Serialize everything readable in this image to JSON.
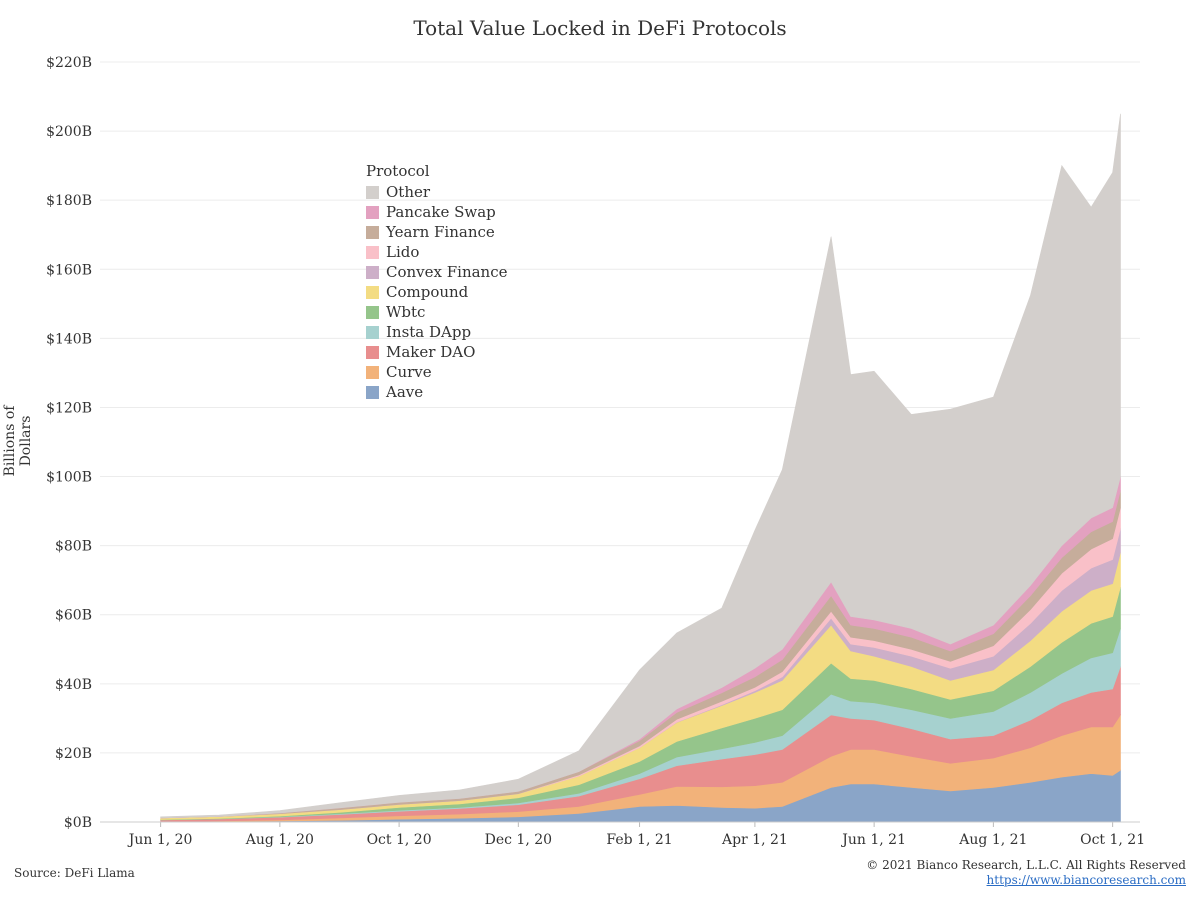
{
  "chart_data": {
    "type": "area",
    "stacked": true,
    "title": "Total Value Locked in DeFi Protocols",
    "ylabel": "Billions of Dollars",
    "xlabel": "",
    "ylim": [
      0,
      220
    ],
    "y_ticks": [
      0,
      20,
      40,
      60,
      80,
      100,
      120,
      140,
      160,
      180,
      200,
      220
    ],
    "y_tick_labels": [
      "$0B",
      "$20B",
      "$40B",
      "$60B",
      "$80B",
      "$100B",
      "$120B",
      "$140B",
      "$160B",
      "$180B",
      "$200B",
      "$220B"
    ],
    "x_ticks": [
      "2020-06-01",
      "2020-08-01",
      "2020-10-01",
      "2020-12-01",
      "2021-02-01",
      "2021-04-01",
      "2021-06-01",
      "2021-08-01",
      "2021-10-01"
    ],
    "x_tick_labels": [
      "Jun 1, 20",
      "Aug 1, 20",
      "Oct 1, 20",
      "Dec 1, 20",
      "Feb 1, 21",
      "Apr 1, 21",
      "Jun 1, 21",
      "Aug 1, 21",
      "Oct 1, 21"
    ],
    "x": [
      "2020-06-01",
      "2020-07-01",
      "2020-08-01",
      "2020-09-01",
      "2020-10-01",
      "2020-11-01",
      "2020-12-01",
      "2021-01-01",
      "2021-02-01",
      "2021-02-20",
      "2021-03-15",
      "2021-04-01",
      "2021-04-15",
      "2021-05-10",
      "2021-05-20",
      "2021-06-01",
      "2021-06-20",
      "2021-07-10",
      "2021-08-01",
      "2021-08-20",
      "2021-09-05",
      "2021-09-20",
      "2021-10-01",
      "2021-10-05"
    ],
    "legend_title": "Protocol",
    "legend_position": "upper-left",
    "grid": true,
    "series": [
      {
        "name": "Aave",
        "color": "#8aa5c8",
        "values": [
          0.1,
          0.2,
          0.3,
          0.5,
          0.8,
          1.1,
          1.5,
          2.5,
          4.5,
          4.8,
          4.2,
          4.0,
          4.5,
          10.0,
          11.0,
          11.0,
          10.0,
          9.0,
          10.0,
          11.5,
          13.0,
          14.0,
          13.5,
          15.0
        ]
      },
      {
        "name": "Curve",
        "color": "#f2b27a",
        "values": [
          0.0,
          0.1,
          0.3,
          0.7,
          1.0,
          1.2,
          1.5,
          2.0,
          3.5,
          5.5,
          6.0,
          6.5,
          7.0,
          9.0,
          10.0,
          10.0,
          9.0,
          8.0,
          8.5,
          10.0,
          12.0,
          13.5,
          14.0,
          16.0
        ]
      },
      {
        "name": "Maker DAO",
        "color": "#e88e8e",
        "values": [
          0.5,
          0.6,
          0.8,
          1.0,
          1.3,
          1.6,
          2.0,
          3.0,
          4.5,
          6.0,
          8.0,
          9.0,
          9.5,
          12.0,
          9.0,
          8.5,
          8.0,
          7.0,
          6.5,
          8.0,
          9.5,
          10.0,
          11.0,
          14.0
        ]
      },
      {
        "name": "Insta DApp",
        "color": "#a6d1cf",
        "values": [
          0.0,
          0.0,
          0.1,
          0.2,
          0.3,
          0.3,
          0.5,
          0.8,
          1.5,
          2.5,
          3.0,
          3.5,
          4.0,
          6.0,
          5.0,
          5.0,
          5.5,
          6.0,
          7.0,
          8.0,
          8.5,
          10.0,
          10.5,
          11.0
        ]
      },
      {
        "name": "Wbtc",
        "color": "#95c58b",
        "values": [
          0.1,
          0.1,
          0.2,
          0.4,
          0.8,
          1.0,
          1.5,
          2.5,
          3.5,
          4.5,
          6.0,
          7.0,
          7.5,
          9.0,
          6.5,
          6.5,
          6.0,
          5.5,
          6.0,
          7.5,
          9.0,
          10.0,
          10.5,
          12.0
        ]
      },
      {
        "name": "Compound",
        "color": "#f3dc83",
        "values": [
          0.5,
          0.6,
          0.7,
          0.8,
          0.9,
          1.0,
          1.2,
          2.5,
          4.0,
          5.5,
          6.5,
          7.5,
          8.5,
          11.0,
          8.0,
          7.0,
          6.5,
          5.5,
          6.0,
          7.5,
          9.0,
          9.5,
          9.5,
          10.0
        ]
      },
      {
        "name": "Convex Finance",
        "color": "#cdafc8",
        "values": [
          0.0,
          0.0,
          0.0,
          0.0,
          0.0,
          0.0,
          0.0,
          0.0,
          0.0,
          0.1,
          0.2,
          0.5,
          1.0,
          2.0,
          2.0,
          2.5,
          3.0,
          3.5,
          4.0,
          5.0,
          6.0,
          6.5,
          7.0,
          7.0
        ]
      },
      {
        "name": "Lido",
        "color": "#f9c0c8",
        "values": [
          0.0,
          0.0,
          0.0,
          0.0,
          0.0,
          0.0,
          0.0,
          0.3,
          0.5,
          0.8,
          1.0,
          1.0,
          1.5,
          2.0,
          2.0,
          2.0,
          2.0,
          2.0,
          3.0,
          4.0,
          5.0,
          5.5,
          6.0,
          6.0
        ]
      },
      {
        "name": "Yearn Finance",
        "color": "#c6ad9b",
        "values": [
          0.0,
          0.0,
          0.2,
          0.5,
          0.6,
          0.6,
          0.7,
          1.0,
          1.5,
          2.0,
          2.5,
          3.0,
          3.5,
          4.5,
          3.5,
          3.5,
          3.5,
          3.0,
          3.5,
          4.0,
          4.5,
          5.0,
          5.0,
          5.0
        ]
      },
      {
        "name": "Pancake Swap",
        "color": "#e3a1c0",
        "values": [
          0.0,
          0.0,
          0.0,
          0.0,
          0.0,
          0.0,
          0.0,
          0.0,
          0.5,
          1.0,
          1.5,
          2.5,
          3.0,
          4.0,
          2.5,
          2.5,
          2.5,
          2.0,
          2.5,
          3.0,
          3.5,
          4.0,
          4.0,
          4.0
        ]
      },
      {
        "name": "Other",
        "color": "#d3cfcc",
        "values": [
          0.3,
          0.4,
          0.7,
          1.5,
          2.0,
          2.5,
          3.5,
          6.0,
          20.0,
          22.0,
          23.0,
          40.0,
          52.0,
          100.0,
          70.0,
          72.0,
          62.0,
          68.0,
          66.0,
          84.0,
          110.0,
          90.0,
          97.0,
          105.0
        ]
      }
    ]
  },
  "footer": {
    "source": "Source: DeFi Llama",
    "copyright": "© 2021 Bianco Research, L.L.C. All Rights Reserved",
    "url": "https://www.biancoresearch.com"
  }
}
